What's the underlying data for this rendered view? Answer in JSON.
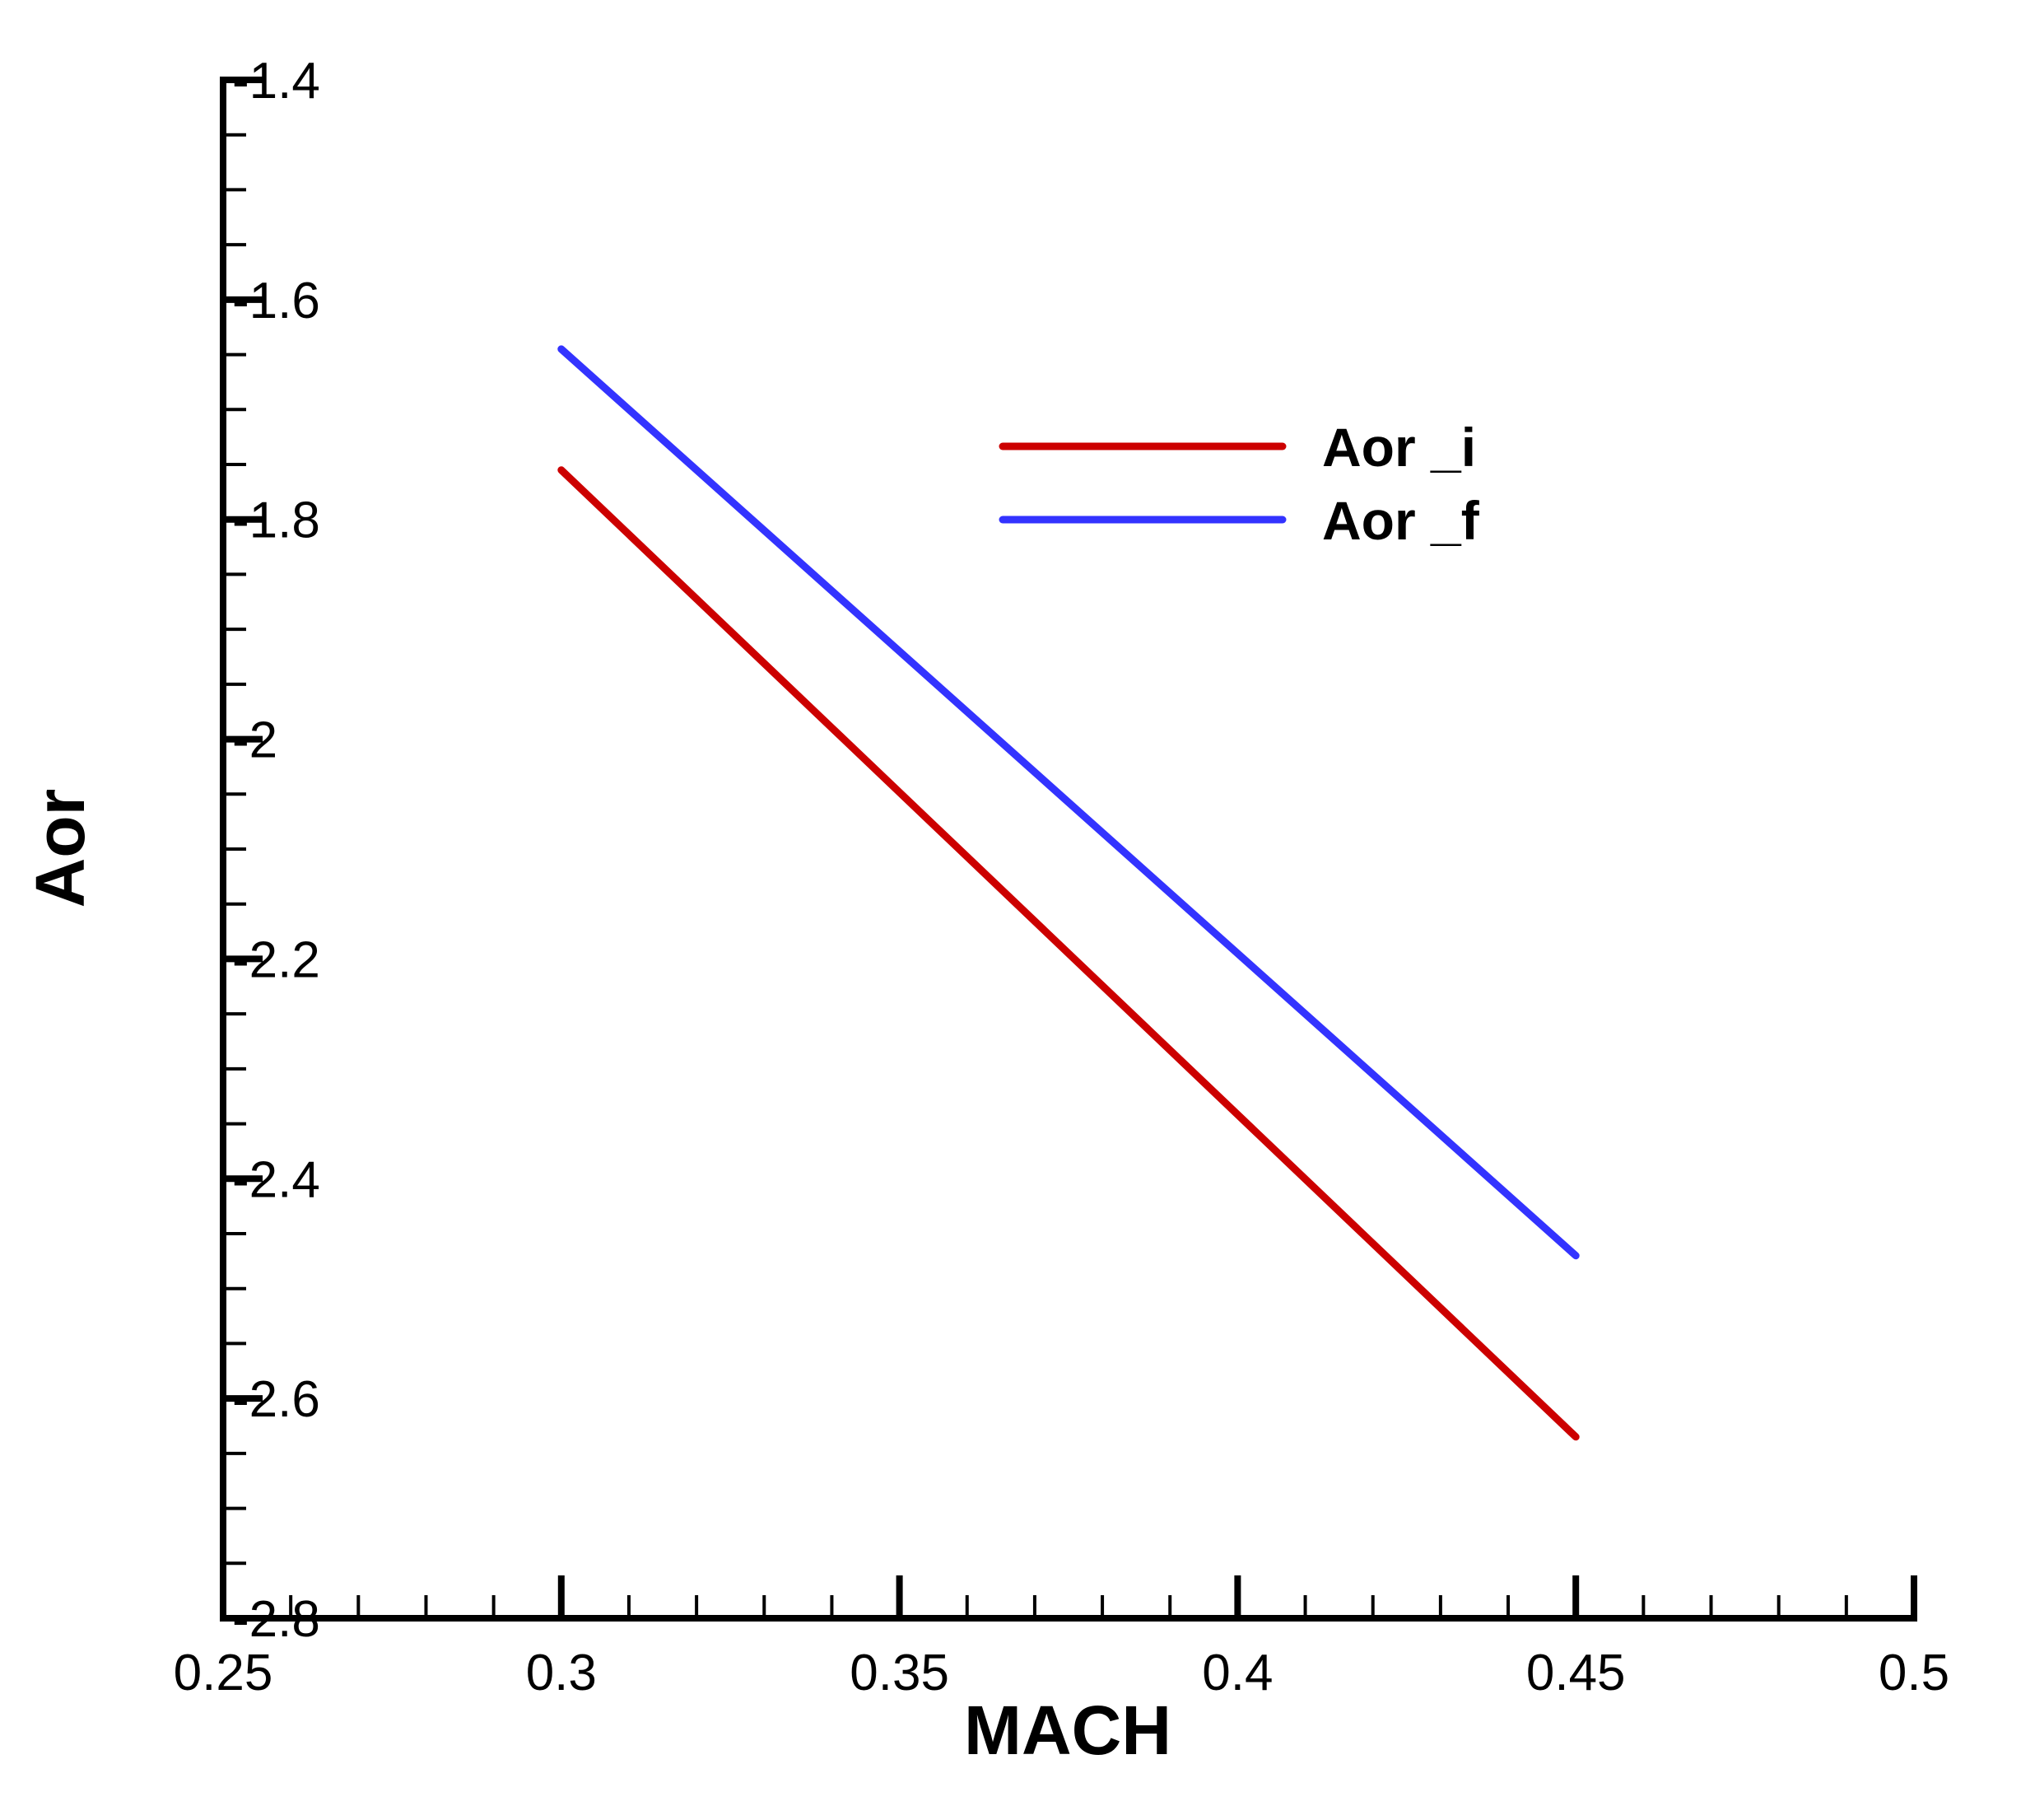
{
  "chart_data": {
    "type": "line",
    "xlabel": "MACH",
    "ylabel": "Aor",
    "xlim": [
      0.25,
      0.5
    ],
    "ylim": [
      -2.8,
      -1.4
    ],
    "x_ticks": [
      "0.25",
      "0.3",
      "0.35",
      "0.4",
      "0.45",
      "0.5"
    ],
    "y_ticks": [
      "-1.4",
      "-1.6",
      "-1.8",
      "-2",
      "-2.2",
      "-2.4",
      "-2.6",
      "-2.8"
    ],
    "x_tick_values": [
      0.25,
      0.3,
      0.35,
      0.4,
      0.45,
      0.5
    ],
    "y_tick_values": [
      -1.4,
      -1.6,
      -1.8,
      -2.0,
      -2.2,
      -2.4,
      -2.6,
      -2.8
    ],
    "x_minor_step": 0.01,
    "y_minor_step": 0.05,
    "grid": false,
    "legend_position": "top-right",
    "series": [
      {
        "name": "Aor _i",
        "color": "#cc0000",
        "x": [
          0.3,
          0.45
        ],
        "y": [
          -1.755,
          -2.635
        ]
      },
      {
        "name": "Aor _f",
        "color": "#3333ff",
        "x": [
          0.3,
          0.45
        ],
        "y": [
          -1.645,
          -2.47
        ]
      }
    ]
  }
}
